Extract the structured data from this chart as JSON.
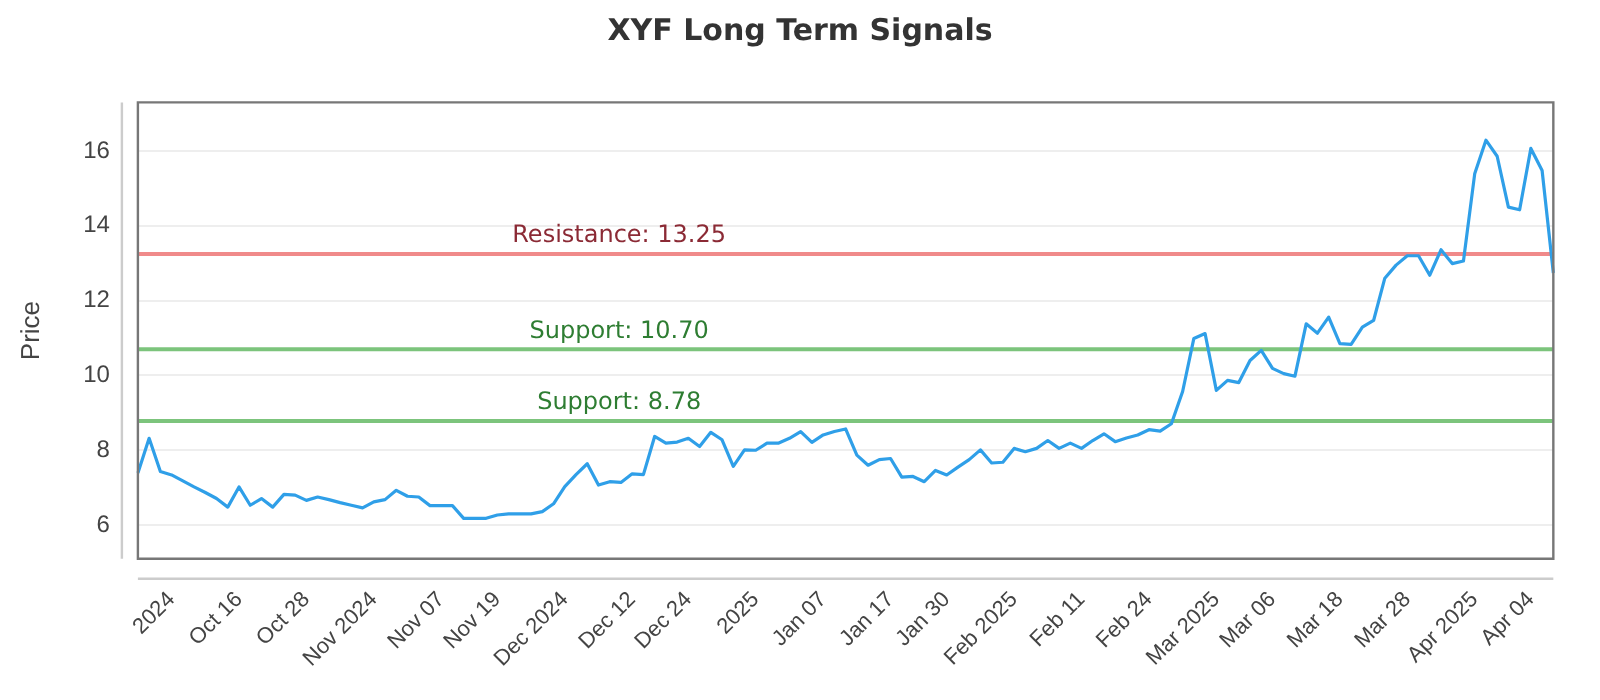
{
  "chart_data": {
    "type": "line",
    "title": "XYF Long Term Signals",
    "ylabel": "Price",
    "categories": [
      null,
      null,
      null,
      "2024",
      null,
      null,
      null,
      null,
      null,
      "Oct 16",
      null,
      null,
      null,
      null,
      null,
      "Oct 28",
      null,
      null,
      null,
      null,
      null,
      "Nov 2024",
      null,
      null,
      null,
      null,
      null,
      "Nov 07",
      null,
      null,
      null,
      null,
      "Nov 19",
      null,
      null,
      null,
      null,
      null,
      "Dec 2024",
      null,
      null,
      null,
      null,
      null,
      "Dec 12",
      null,
      null,
      null,
      null,
      "Dec 24",
      null,
      null,
      null,
      null,
      null,
      "2025",
      null,
      null,
      null,
      null,
      null,
      "Jan 07",
      null,
      null,
      null,
      null,
      null,
      "Jan 17",
      null,
      null,
      null,
      null,
      "Jan 30",
      null,
      null,
      null,
      null,
      null,
      "Feb 2025",
      null,
      null,
      null,
      null,
      null,
      "Feb 11",
      null,
      null,
      null,
      null,
      null,
      "Feb 24",
      null,
      null,
      null,
      null,
      null,
      "Mar 2025",
      null,
      null,
      null,
      null,
      "Mar 06",
      null,
      null,
      null,
      null,
      null,
      "Mar 18",
      null,
      null,
      null,
      null,
      null,
      "Mar 28",
      null,
      null,
      null,
      null,
      null,
      "Apr 2025",
      null,
      null,
      null,
      null,
      "Apr 04",
      null,
      null
    ],
    "series": [
      {
        "color": "#2f9fe8",
        "values": [
          7.39,
          8.32,
          7.43,
          7.34,
          7.18,
          7.02,
          6.87,
          6.71,
          6.48,
          7.02,
          6.53,
          6.71,
          6.48,
          6.82,
          6.8,
          6.66,
          6.75,
          6.68,
          6.6,
          6.53,
          6.46,
          6.62,
          6.68,
          6.93,
          6.77,
          6.75,
          6.52,
          6.52,
          6.52,
          6.18,
          6.18,
          6.18,
          6.27,
          6.3,
          6.3,
          6.3,
          6.36,
          6.57,
          7.03,
          7.35,
          7.64,
          7.07,
          7.16,
          7.14,
          7.37,
          7.35,
          8.37,
          8.19,
          8.22,
          8.32,
          8.1,
          8.48,
          8.28,
          7.57,
          8.01,
          8.0,
          8.19,
          8.19,
          8.32,
          8.5,
          8.21,
          8.41,
          8.5,
          8.57,
          7.87,
          7.6,
          7.75,
          7.78,
          7.28,
          7.3,
          7.16,
          7.46,
          7.34,
          7.55,
          7.75,
          8.01,
          7.66,
          7.68,
          8.05,
          7.96,
          8.05,
          8.26,
          8.05,
          8.19,
          8.05,
          8.26,
          8.44,
          8.23,
          8.33,
          8.41,
          8.55,
          8.51,
          8.71,
          9.57,
          10.99,
          11.12,
          9.6,
          9.87,
          9.81,
          10.4,
          10.67,
          10.19,
          10.05,
          9.98,
          11.38,
          11.13,
          11.56,
          10.85,
          10.83,
          11.29,
          11.47,
          12.6,
          12.95,
          13.2,
          13.2,
          12.68,
          13.36,
          12.99,
          13.06,
          15.39,
          16.29,
          15.86,
          14.5,
          14.43,
          16.07,
          15.48,
          12.74
        ]
      }
    ],
    "ylim": [
      5.1,
      17.3
    ],
    "yticks": [
      6,
      8,
      10,
      12,
      14,
      16
    ],
    "grid": "y",
    "legend": false,
    "marker": "none",
    "line_style": "solid",
    "ref_lines": [
      {
        "axis": "y",
        "value": 13.25,
        "label": "Resistance: 13.25",
        "color": "#f08a8a"
      },
      {
        "axis": "y",
        "value": 10.7,
        "label": "Support: 10.70",
        "color": "#7cc47c"
      },
      {
        "axis": "y",
        "value": 8.78,
        "label": "Support: 8.78",
        "color": "#7cc47c"
      }
    ]
  }
}
